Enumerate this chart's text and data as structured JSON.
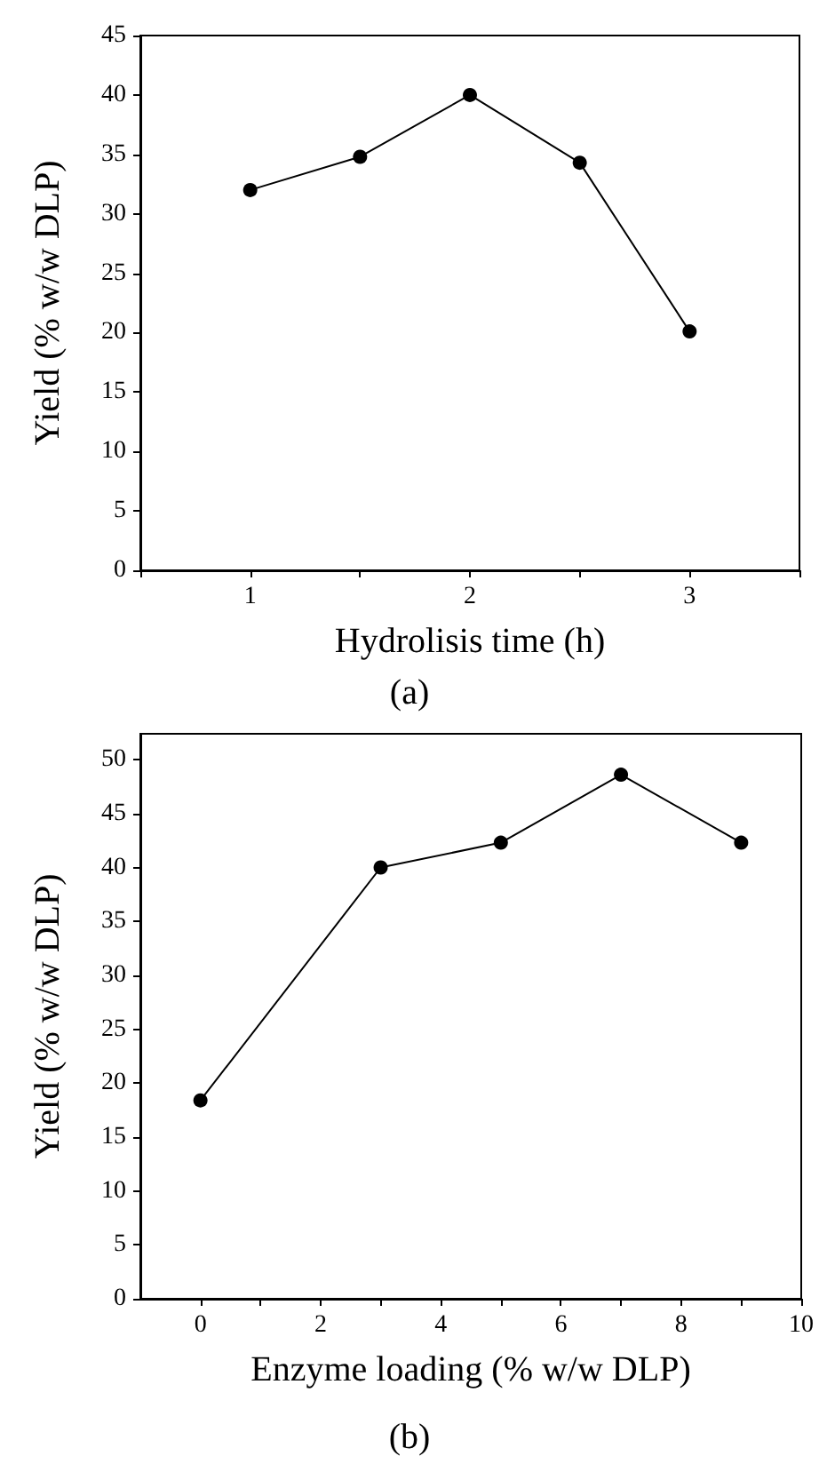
{
  "chart_data": [
    {
      "type": "line",
      "title": "(a)",
      "xlabel": "Hydrolisis time (h)",
      "ylabel": "Yield (% w/w DLP)",
      "x": [
        1,
        1.5,
        2,
        2.5,
        3
      ],
      "values": [
        32,
        34.8,
        40,
        34.3,
        20.1
      ],
      "color": "#000000",
      "marker": "circle",
      "grid": false,
      "xlim": [
        0.5,
        3.5
      ],
      "xticks": [
        {
          "value": 0.5,
          "label": null
        },
        1,
        {
          "value": 1.5,
          "label": null
        },
        2,
        {
          "value": 2.5,
          "label": null
        },
        3,
        {
          "value": 3.5,
          "label": null
        }
      ],
      "ylim": [
        0,
        45
      ],
      "yticks": [
        0,
        5,
        10,
        15,
        20,
        25,
        30,
        35,
        40,
        45
      ]
    },
    {
      "type": "line",
      "title": "(b)",
      "xlabel": "Enzyme loading (% w/w DLP)",
      "ylabel": "Yield (% w/w DLP)",
      "x": [
        0,
        3,
        5,
        7,
        9
      ],
      "values": [
        18.4,
        40,
        42.3,
        48.6,
        42.3
      ],
      "color": "#000000",
      "marker": "circle",
      "grid": false,
      "xlim": [
        -1,
        10
      ],
      "xticks": [
        0,
        {
          "value": 1,
          "label": null
        },
        2,
        {
          "value": 3,
          "label": null
        },
        4,
        {
          "value": 5,
          "label": null
        },
        6,
        {
          "value": 7,
          "label": null
        },
        8,
        {
          "value": 9,
          "label": null
        },
        10
      ],
      "ylim": [
        0,
        52.4
      ],
      "yticks": [
        0,
        5,
        10,
        15,
        20,
        25,
        30,
        35,
        40,
        45,
        50
      ]
    }
  ]
}
